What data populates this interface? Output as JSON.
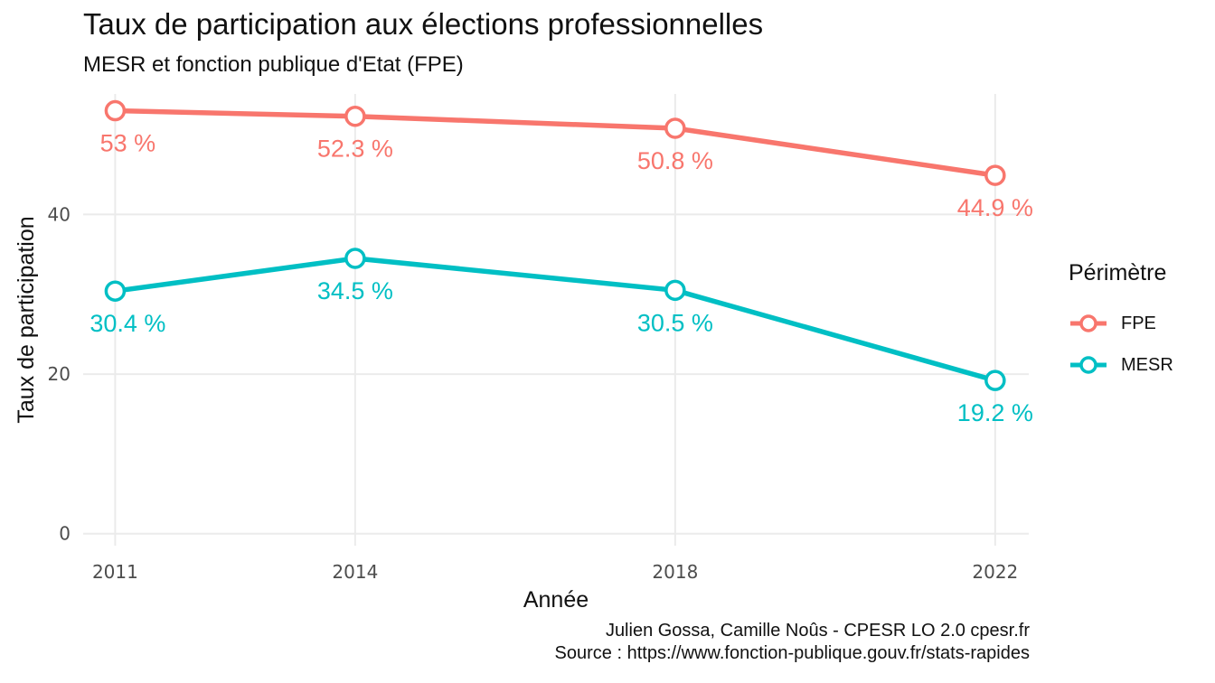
{
  "chart_data": {
    "type": "line",
    "title": "Taux de participation aux élections professionnelles",
    "subtitle": "MESR et fonction publique d'Etat (FPE)",
    "xlabel": "Année",
    "ylabel": "Taux de participation",
    "x": [
      2011,
      2014,
      2018,
      2022
    ],
    "xlim": [
      2010.6,
      2022.42
    ],
    "ylim": [
      -1.5,
      55.1
    ],
    "yticks": [
      0,
      20,
      40
    ],
    "grid": true,
    "legend_title": "Périmètre",
    "legend_position": "right",
    "series": [
      {
        "name": "FPE",
        "color": "#F8766D",
        "values": [
          53,
          52.3,
          50.8,
          44.9
        ],
        "labels": [
          "53 %",
          "52.3 %",
          "50.8 %",
          "44.9 %"
        ]
      },
      {
        "name": "MESR",
        "color": "#00BFC4",
        "values": [
          30.4,
          34.5,
          30.5,
          19.2
        ],
        "labels": [
          "30.4 %",
          "34.5 %",
          "30.5 %",
          "19.2 %"
        ]
      }
    ],
    "caption": [
      "Julien Gossa, Camille Noûs - CPESR LO 2.0 cpesr.fr",
      "Source : https://www.fonction-publique.gouv.fr/stats-rapides"
    ]
  }
}
